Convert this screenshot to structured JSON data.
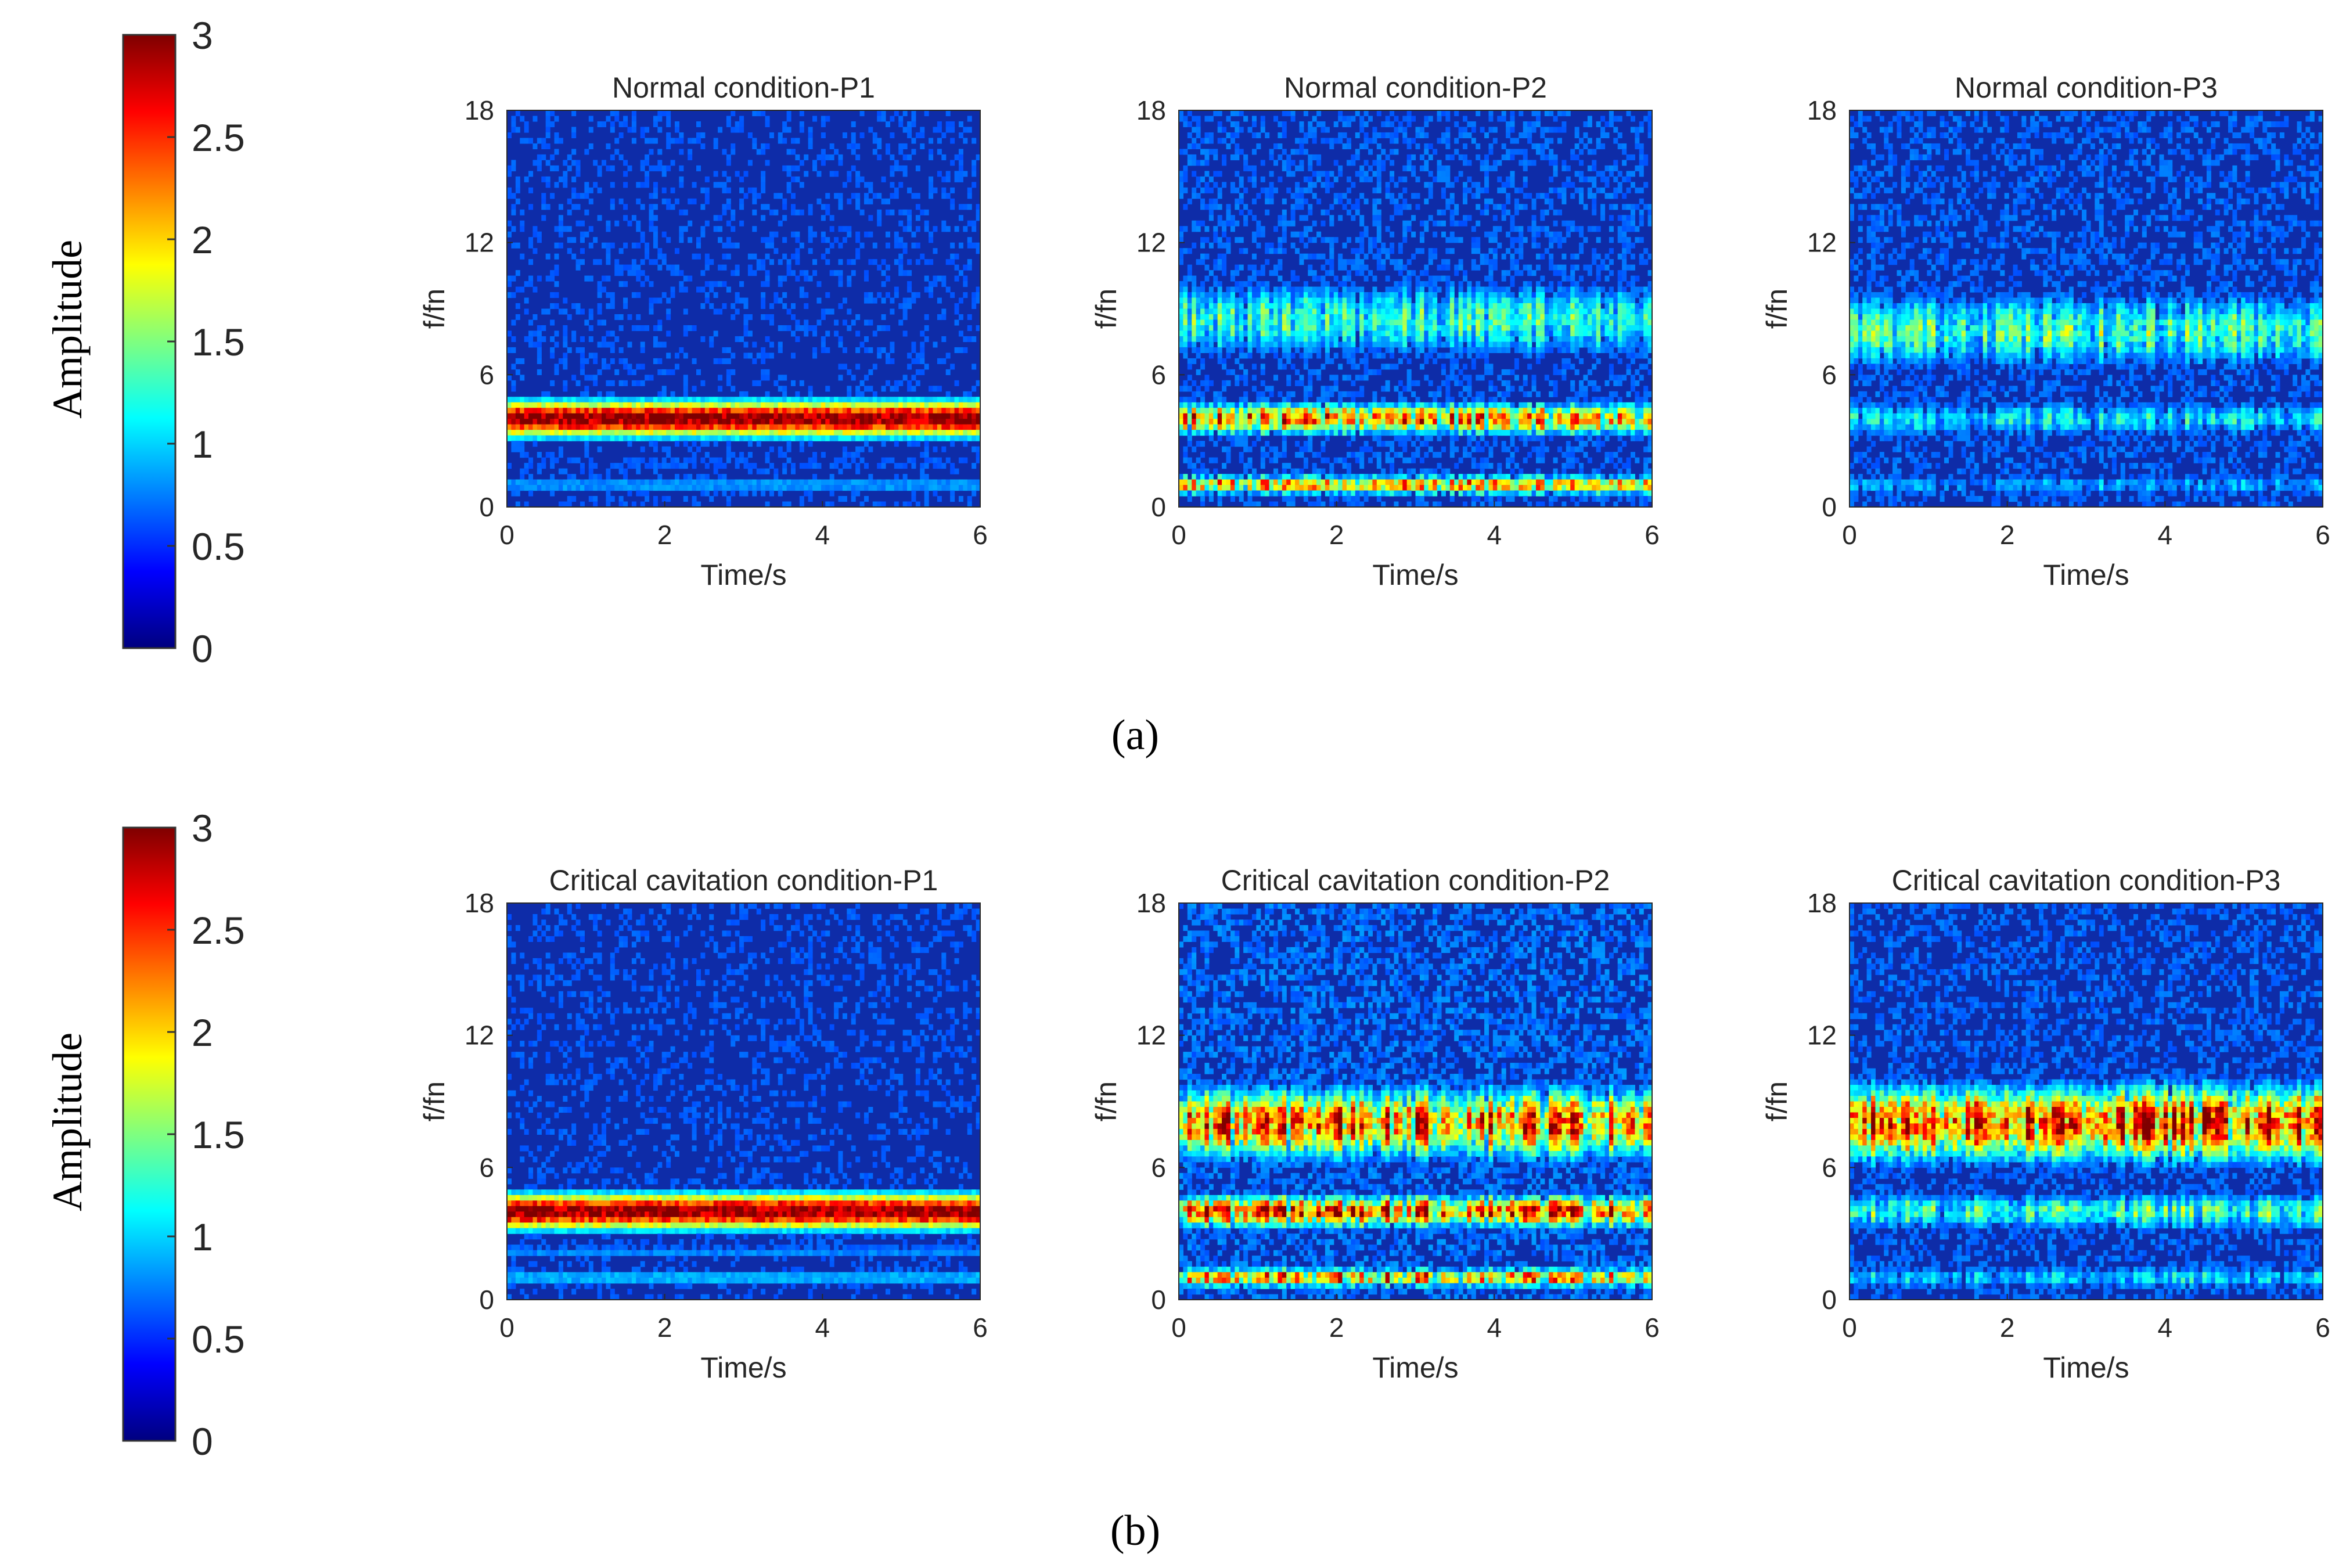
{
  "figure": {
    "panel_labels": [
      "(a)",
      "(b)"
    ],
    "colormap": {
      "name": "jet",
      "stops": [
        "#00007f",
        "#0000ff",
        "#007fff",
        "#00ffff",
        "#7fff7f",
        "#ffff00",
        "#ff7f00",
        "#ff0000",
        "#7f0000"
      ],
      "background_hex": "#0e2ca8"
    },
    "colorbar": {
      "label": "Amplitude",
      "range": [
        0,
        3
      ],
      "ticks": [
        "0",
        "0.5",
        "1",
        "1.5",
        "2",
        "2.5",
        "3"
      ]
    }
  },
  "chart_data": [
    {
      "type": "heatmap",
      "title": "Normal condition-P1",
      "xlabel": "Time/s",
      "ylabel": "f/fn",
      "xlim": [
        0,
        6
      ],
      "ylim": [
        0,
        18
      ],
      "xticks": [
        "0",
        "2",
        "4",
        "6"
      ],
      "yticks": [
        "0",
        "6",
        "12",
        "18"
      ],
      "bands": [
        {
          "center_f_fn": 4.0,
          "amplitude": 3.0,
          "width_f_fn": 1.2,
          "continuity": "continuous"
        },
        {
          "center_f_fn": 1.0,
          "amplitude": 0.9,
          "width_f_fn": 0.5,
          "continuity": "continuous"
        },
        {
          "center_f_fn": 2.0,
          "amplitude": 0.7,
          "width_f_fn": 0.4,
          "continuity": "continuous"
        }
      ],
      "background_amplitude": 0.5
    },
    {
      "type": "heatmap",
      "title": "Normal condition-P2",
      "xlabel": "Time/s",
      "ylabel": "f/fn",
      "xlim": [
        0,
        6
      ],
      "ylim": [
        0,
        18
      ],
      "xticks": [
        "0",
        "2",
        "4",
        "6"
      ],
      "yticks": [
        "0",
        "6",
        "12",
        "18"
      ],
      "bands": [
        {
          "center_f_fn": 4.0,
          "amplitude": 2.6,
          "width_f_fn": 1.0,
          "continuity": "intermittent"
        },
        {
          "center_f_fn": 8.5,
          "amplitude": 1.5,
          "width_f_fn": 2.5,
          "continuity": "intermittent"
        },
        {
          "center_f_fn": 1.0,
          "amplitude": 2.5,
          "width_f_fn": 0.6,
          "continuity": "intermittent"
        }
      ],
      "background_amplitude": 0.55
    },
    {
      "type": "heatmap",
      "title": "Normal condition-P3",
      "xlabel": "Time/s",
      "ylabel": "f/fn",
      "xlim": [
        0,
        6
      ],
      "ylim": [
        0,
        18
      ],
      "xticks": [
        "0",
        "2",
        "4",
        "6"
      ],
      "yticks": [
        "0",
        "6",
        "12",
        "18"
      ],
      "bands": [
        {
          "center_f_fn": 8.0,
          "amplitude": 1.6,
          "width_f_fn": 2.5,
          "continuity": "intermittent"
        },
        {
          "center_f_fn": 4.0,
          "amplitude": 1.3,
          "width_f_fn": 1.2,
          "continuity": "intermittent"
        },
        {
          "center_f_fn": 1.0,
          "amplitude": 1.0,
          "width_f_fn": 0.8,
          "continuity": "intermittent"
        }
      ],
      "background_amplitude": 0.55
    },
    {
      "type": "heatmap",
      "title": "Critical cavitation condition-P1",
      "xlabel": "Time/s",
      "ylabel": "f/fn",
      "xlim": [
        0,
        6
      ],
      "ylim": [
        0,
        18
      ],
      "xticks": [
        "0",
        "2",
        "4",
        "6"
      ],
      "yticks": [
        "0",
        "6",
        "12",
        "18"
      ],
      "bands": [
        {
          "center_f_fn": 4.0,
          "amplitude": 3.0,
          "width_f_fn": 1.2,
          "continuity": "continuous"
        },
        {
          "center_f_fn": 1.0,
          "amplitude": 1.0,
          "width_f_fn": 0.5,
          "continuity": "continuous"
        },
        {
          "center_f_fn": 2.2,
          "amplitude": 0.8,
          "width_f_fn": 0.5,
          "continuity": "continuous"
        }
      ],
      "background_amplitude": 0.5
    },
    {
      "type": "heatmap",
      "title": "Critical cavitation condition-P2",
      "xlabel": "Time/s",
      "ylabel": "f/fn",
      "xlim": [
        0,
        6
      ],
      "ylim": [
        0,
        18
      ],
      "xticks": [
        "0",
        "2",
        "4",
        "6"
      ],
      "yticks": [
        "0",
        "6",
        "12",
        "18"
      ],
      "bands": [
        {
          "center_f_fn": 8.0,
          "amplitude": 2.8,
          "width_f_fn": 2.2,
          "continuity": "intermittent"
        },
        {
          "center_f_fn": 4.0,
          "amplitude": 3.0,
          "width_f_fn": 1.0,
          "continuity": "intermittent"
        },
        {
          "center_f_fn": 1.0,
          "amplitude": 2.6,
          "width_f_fn": 0.6,
          "continuity": "intermittent"
        }
      ],
      "background_amplitude": 0.6
    },
    {
      "type": "heatmap",
      "title": "Critical cavitation condition-P3",
      "xlabel": "Time/s",
      "ylabel": "f/fn",
      "xlim": [
        0,
        6
      ],
      "ylim": [
        0,
        18
      ],
      "xticks": [
        "0",
        "2",
        "4",
        "6"
      ],
      "yticks": [
        "0",
        "6",
        "12",
        "18"
      ],
      "bands": [
        {
          "center_f_fn": 8.0,
          "amplitude": 3.0,
          "width_f_fn": 2.4,
          "continuity": "intermittent"
        },
        {
          "center_f_fn": 4.0,
          "amplitude": 1.6,
          "width_f_fn": 1.2,
          "continuity": "intermittent"
        },
        {
          "center_f_fn": 1.0,
          "amplitude": 1.2,
          "width_f_fn": 0.8,
          "continuity": "intermittent"
        }
      ],
      "background_amplitude": 0.55
    }
  ]
}
